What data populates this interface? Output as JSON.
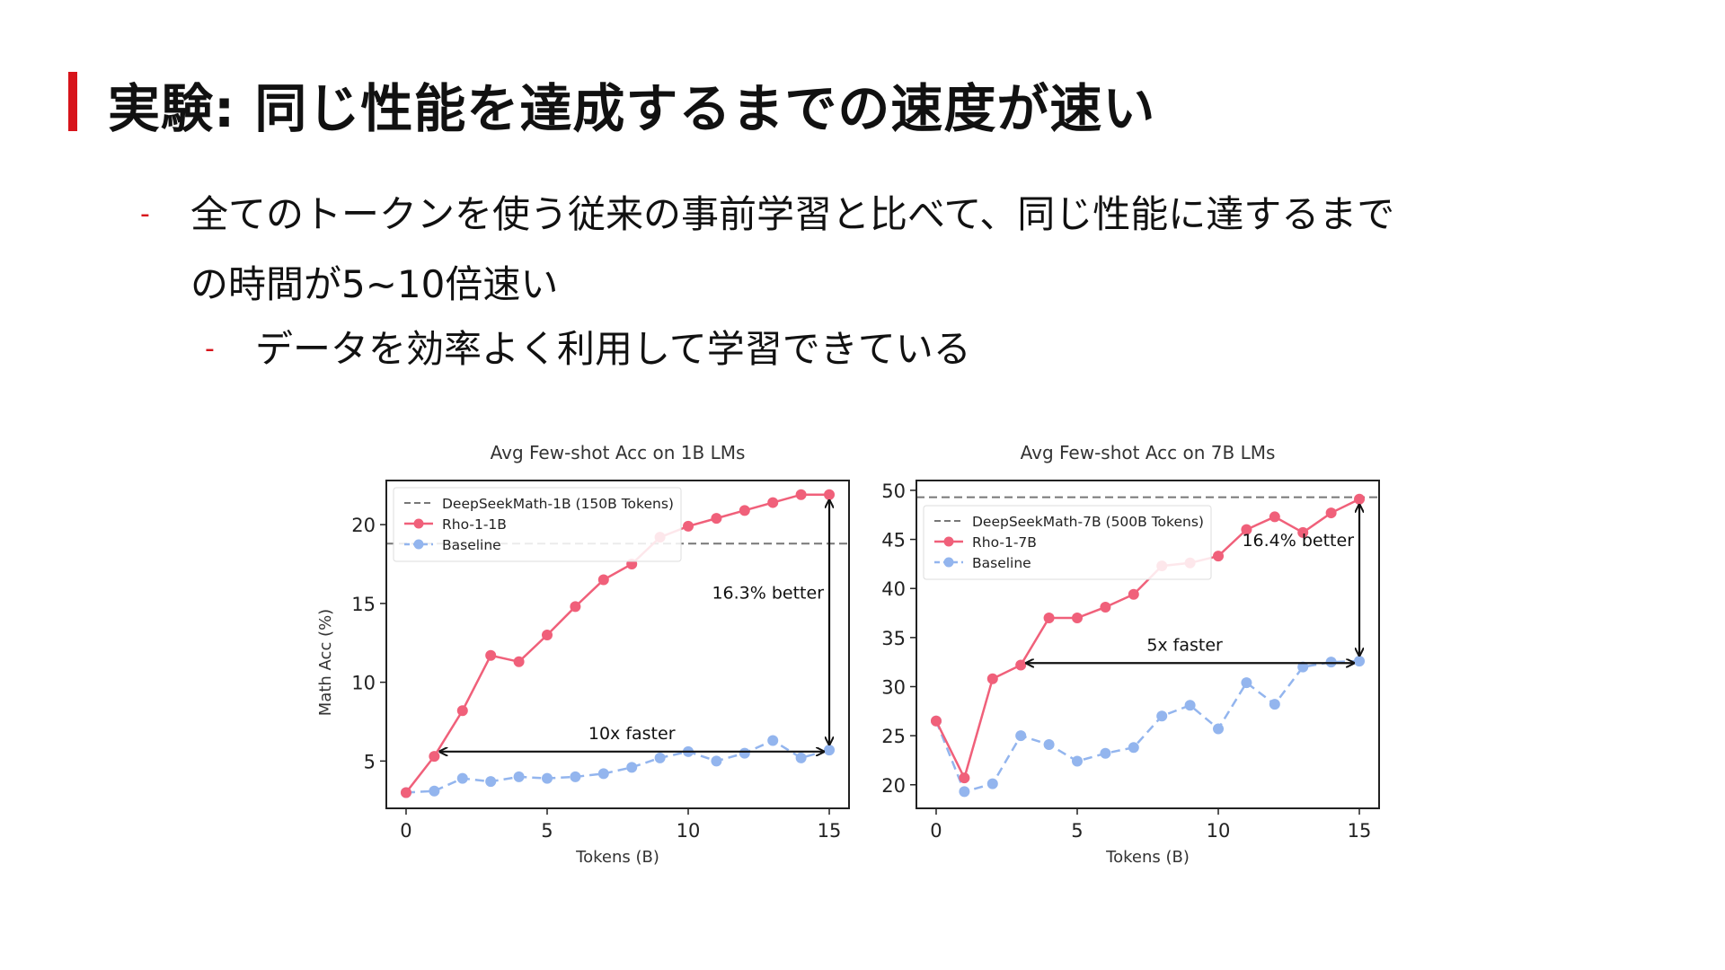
{
  "slide": {
    "title": "実験: 同じ性能を達成するまでの速度が速い",
    "bullets": [
      {
        "level": 1,
        "dash": "-",
        "lines": [
          "全てのトークンを使う従来の事前学習と比べて、同じ性能に達するまで",
          "の時間が5~10倍速い"
        ]
      },
      {
        "level": 2,
        "dash": "-",
        "lines": [
          "データを効率よく利用して学習できている"
        ]
      }
    ]
  },
  "colors": {
    "rho": "#f0607a",
    "baseline": "#93b5ee",
    "reference": "#777777",
    "accent": "#d7141b"
  },
  "chart_data": [
    {
      "type": "line",
      "title": "Avg Few-shot Acc on 1B LMs",
      "xlabel": "Tokens (B)",
      "ylabel": "Math Acc (%)",
      "xlim": [
        -0.7,
        15.7
      ],
      "ylim": [
        2,
        22.8
      ],
      "xticks": [
        0,
        5,
        10,
        15
      ],
      "yticks": [
        5,
        10,
        15,
        20
      ],
      "x": [
        0,
        1,
        2,
        3,
        4,
        5,
        6,
        7,
        8,
        9,
        10,
        11,
        12,
        13,
        14,
        15
      ],
      "series": [
        {
          "name": "Rho-1-1B",
          "style": "solid",
          "color": "#f0607a",
          "values": [
            3.0,
            5.3,
            8.2,
            11.7,
            11.3,
            13.0,
            14.8,
            16.5,
            17.5,
            19.2,
            19.9,
            20.4,
            20.9,
            21.4,
            21.9,
            21.9
          ]
        },
        {
          "name": "Baseline",
          "style": "dashed",
          "color": "#93b5ee",
          "values": [
            3.0,
            3.1,
            3.9,
            3.7,
            4.0,
            3.9,
            4.0,
            4.2,
            4.6,
            5.2,
            5.6,
            5.0,
            5.5,
            6.3,
            5.2,
            5.7
          ]
        }
      ],
      "reference": {
        "name": "DeepSeekMath-1B (150B Tokens)",
        "value": 18.8
      },
      "legend": [
        "DeepSeekMath-1B (150B Tokens)",
        "Rho-1-1B",
        "Baseline"
      ],
      "legend_position": "top-left",
      "annotations": [
        {
          "text": "10x faster",
          "type": "horizontal-arrow",
          "x_from": 1,
          "x_to": 15,
          "y": 5.6
        },
        {
          "text": "16.3% better",
          "type": "vertical-arrow",
          "x": 15,
          "y_from": 5.7,
          "y_to": 21.9
        }
      ]
    },
    {
      "type": "line",
      "title": "Avg Few-shot Acc on 7B LMs",
      "xlabel": "Tokens (B)",
      "ylabel": "",
      "xlim": [
        -0.7,
        15.7
      ],
      "ylim": [
        17.6,
        51.0
      ],
      "xticks": [
        0,
        5,
        10,
        15
      ],
      "yticks": [
        20,
        25,
        30,
        35,
        40,
        45,
        50
      ],
      "x": [
        0,
        1,
        2,
        3,
        4,
        5,
        6,
        7,
        8,
        9,
        10,
        11,
        12,
        13,
        14,
        15
      ],
      "series": [
        {
          "name": "Rho-1-7B",
          "style": "solid",
          "color": "#f0607a",
          "values": [
            26.5,
            20.7,
            30.8,
            32.2,
            37.0,
            37.0,
            38.1,
            39.4,
            42.3,
            42.6,
            43.3,
            46.0,
            47.3,
            45.7,
            47.7,
            49.1
          ]
        },
        {
          "name": "Baseline",
          "style": "dashed",
          "color": "#93b5ee",
          "values": [
            26.5,
            19.3,
            20.1,
            25.0,
            24.1,
            22.4,
            23.2,
            23.8,
            27.0,
            28.1,
            25.7,
            30.4,
            28.2,
            32.0,
            32.5,
            32.6
          ]
        }
      ],
      "reference": {
        "name": "DeepSeekMath-7B (500B Tokens)",
        "value": 49.3
      },
      "legend": [
        "DeepSeekMath-7B (500B Tokens)",
        "Rho-1-7B",
        "Baseline"
      ],
      "legend_position": "top-left",
      "annotations": [
        {
          "text": "5x faster",
          "type": "horizontal-arrow",
          "x_from": 3,
          "x_to": 15,
          "y": 32.4
        },
        {
          "text": "16.4% better",
          "type": "vertical-arrow",
          "x": 15,
          "y_from": 32.6,
          "y_to": 49.1
        }
      ]
    }
  ]
}
